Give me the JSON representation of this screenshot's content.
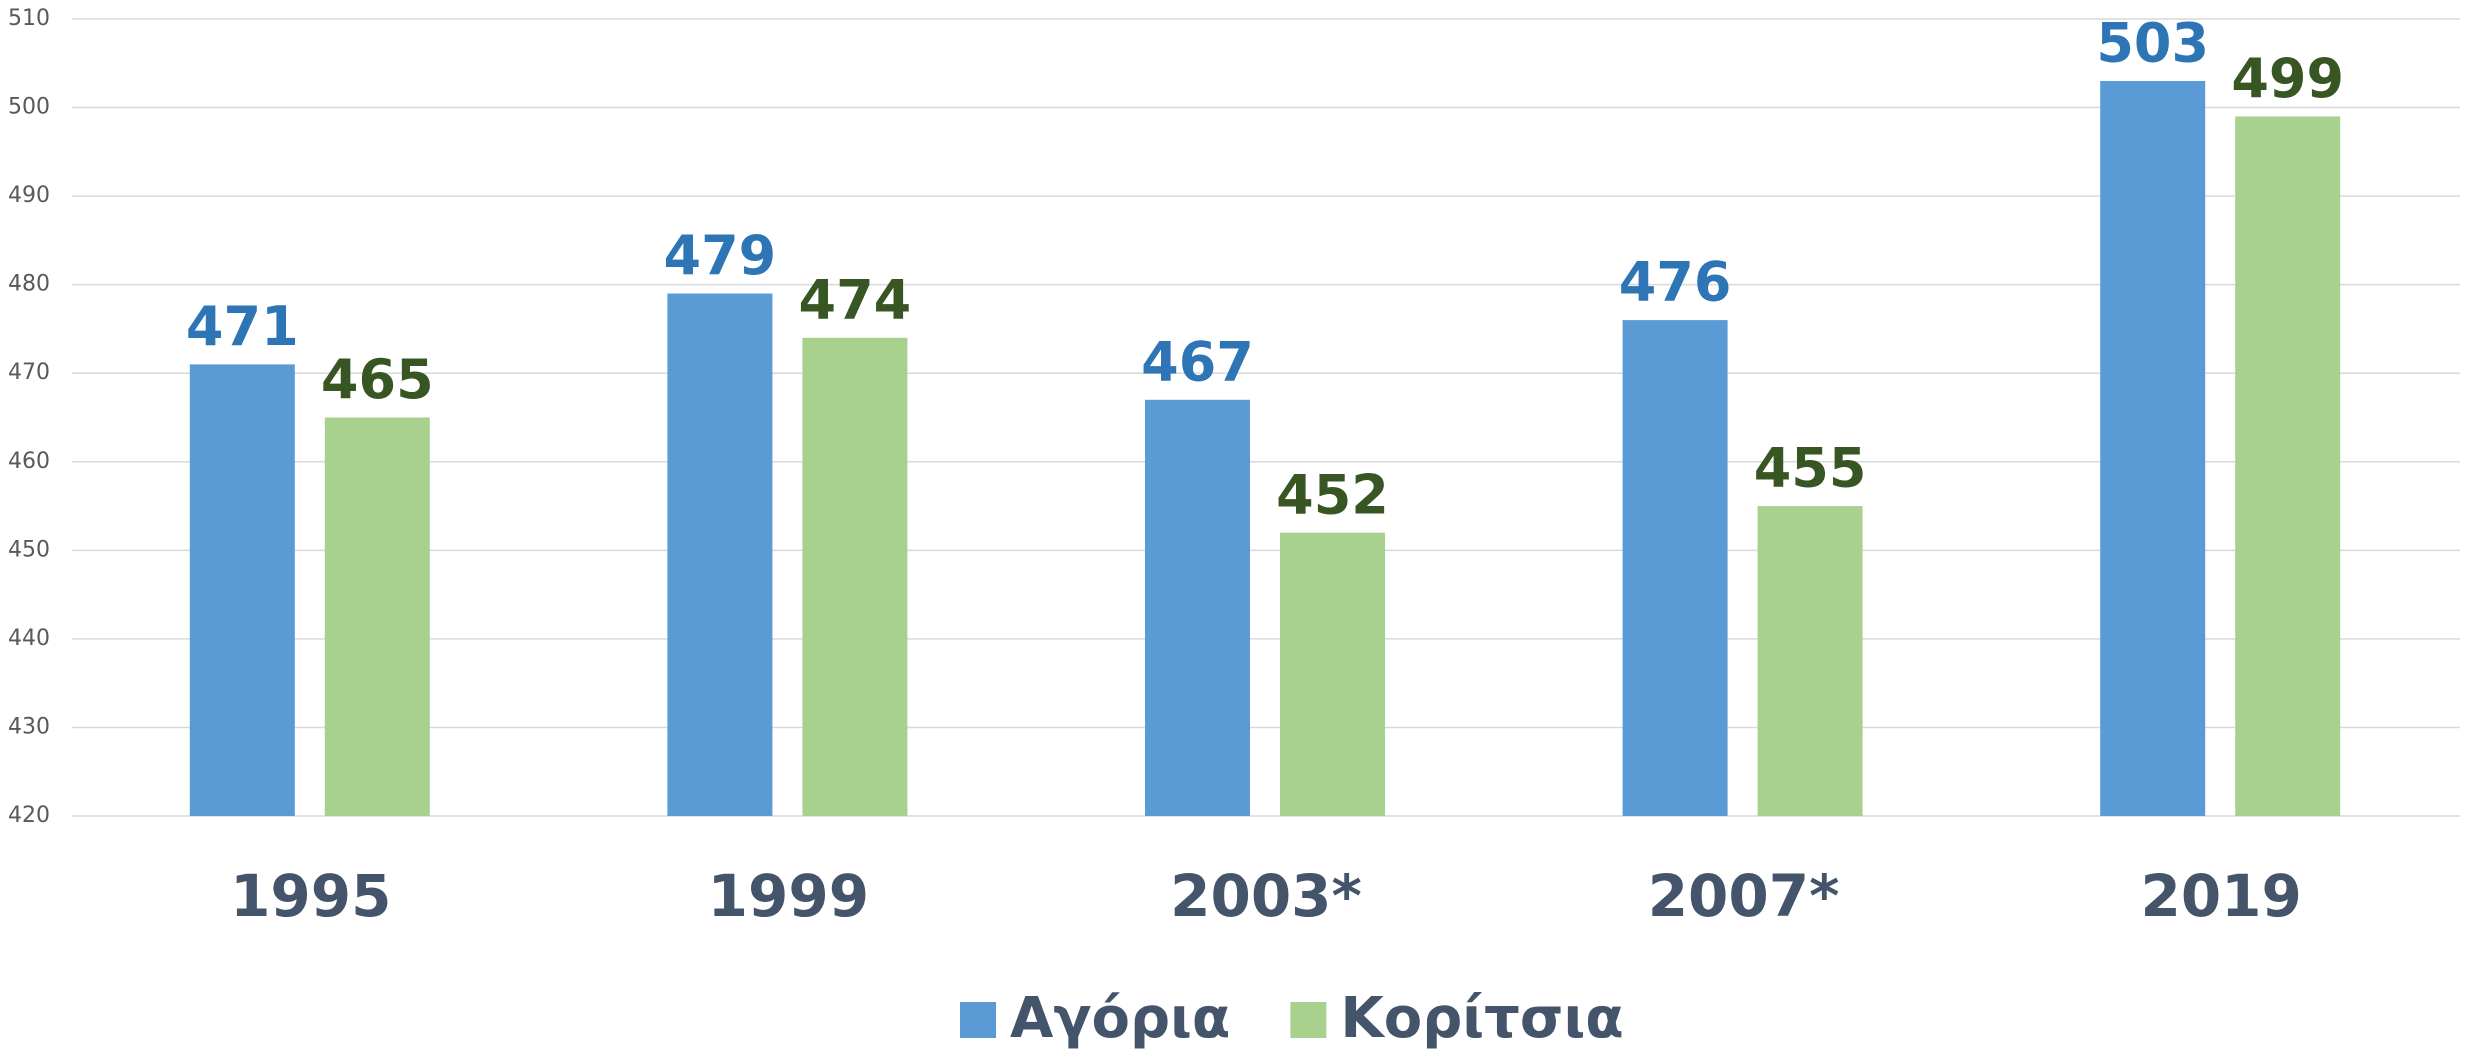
{
  "chart_data": {
    "type": "bar",
    "categories": [
      "1995",
      "1999",
      "2003*",
      "2007*",
      "2019"
    ],
    "series": [
      {
        "name": "Αγόρια",
        "color": "#5b9bd5",
        "label_color": "#2e75b6",
        "values": [
          471,
          479,
          467,
          476,
          503
        ]
      },
      {
        "name": "Κορίτσια",
        "color": "#a9d18e",
        "label_color": "#375623",
        "values": [
          465,
          474,
          452,
          455,
          499
        ]
      }
    ],
    "ylim": [
      420,
      510
    ],
    "yticks": [
      420,
      430,
      440,
      450,
      460,
      470,
      480,
      490,
      500,
      510
    ],
    "grid": true,
    "legend": "bottom"
  }
}
